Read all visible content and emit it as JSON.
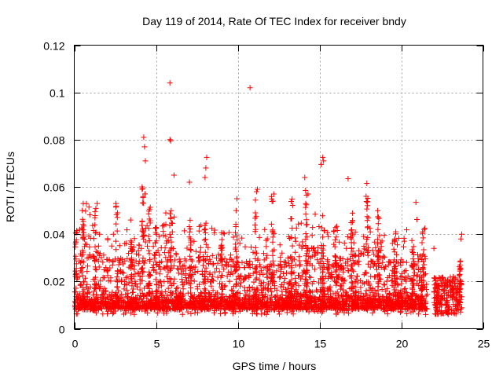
{
  "chart_data": {
    "type": "scatter",
    "title": "Day 119 of 2014, Rate Of TEC Index for receiver bndy",
    "xlabel": "GPS time / hours",
    "ylabel": "ROTI / TECUs",
    "xlim": [
      0,
      25
    ],
    "ylim": [
      0,
      0.12
    ],
    "xticks": [
      0,
      5,
      10,
      15,
      20,
      25
    ],
    "yticks": [
      0,
      0.02,
      0.04,
      0.06,
      0.08,
      0.1,
      0.12
    ],
    "ytick_labels": [
      "0",
      "0.02",
      "0.04",
      "0.06",
      "0.08",
      "0.1",
      "0.12"
    ],
    "grid": true,
    "marker": "plus",
    "color": "#ff0000",
    "outliers": [
      {
        "x": 5.85,
        "y": 0.104
      },
      {
        "x": 10.75,
        "y": 0.102
      },
      {
        "x": 4.25,
        "y": 0.081
      },
      {
        "x": 4.3,
        "y": 0.077
      },
      {
        "x": 4.35,
        "y": 0.071
      },
      {
        "x": 5.85,
        "y": 0.08
      },
      {
        "x": 5.9,
        "y": 0.0795
      },
      {
        "x": 6.1,
        "y": 0.065
      },
      {
        "x": 8.1,
        "y": 0.0725
      },
      {
        "x": 8.05,
        "y": 0.068
      },
      {
        "x": 8.0,
        "y": 0.064
      },
      {
        "x": 7.05,
        "y": 0.062
      },
      {
        "x": 15.2,
        "y": 0.0725
      },
      {
        "x": 15.25,
        "y": 0.071
      },
      {
        "x": 15.1,
        "y": 0.0695
      },
      {
        "x": 16.75,
        "y": 0.0635
      },
      {
        "x": 17.9,
        "y": 0.0615
      },
      {
        "x": 4.15,
        "y": 0.06
      },
      {
        "x": 11.2,
        "y": 0.059
      },
      {
        "x": 11.15,
        "y": 0.058
      },
      {
        "x": 12.2,
        "y": 0.057
      },
      {
        "x": 14.1,
        "y": 0.064
      },
      {
        "x": 14.3,
        "y": 0.057
      },
      {
        "x": 14.15,
        "y": 0.0585
      },
      {
        "x": 20.9,
        "y": 0.0535
      },
      {
        "x": 9.95,
        "y": 0.055
      },
      {
        "x": 0.55,
        "y": 0.053
      },
      {
        "x": 1.4,
        "y": 0.053
      },
      {
        "x": 2.55,
        "y": 0.053
      },
      {
        "x": 3.45,
        "y": 0.046
      },
      {
        "x": 22.0,
        "y": 0.034
      },
      {
        "x": 23.7,
        "y": 0.04
      },
      {
        "x": 23.65,
        "y": 0.038
      },
      {
        "x": 21.4,
        "y": 0.042
      },
      {
        "x": 21.45,
        "y": 0.0425
      },
      {
        "x": 5.6,
        "y": 0.049
      },
      {
        "x": 6.0,
        "y": 0.041
      },
      {
        "x": 9.9,
        "y": 0.05
      }
    ]
  }
}
